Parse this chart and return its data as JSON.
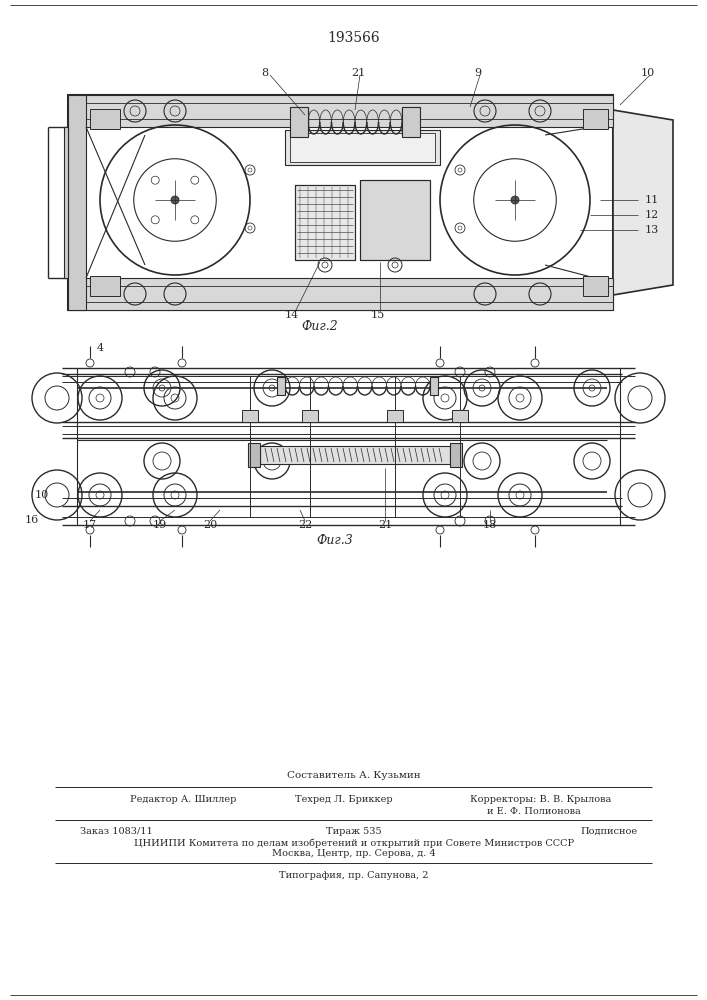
{
  "patent_number": "193566",
  "bg_color": "#ffffff",
  "lc": "#2a2a2a",
  "fig1_caption": "Фиг.2",
  "fig2_caption": "Фиг.3",
  "footer_composer": "Составитель А. Кузьмин",
  "footer_editor": "Редактор А. Шиллер",
  "footer_techred": "Техред Л. Бриккер",
  "footer_corr": "Корректоры: В. В. Крылова",
  "footer_corr2": "и Е. Ф. Полионова",
  "footer_order": "Заказ 1083/11",
  "footer_tirazh": "Тираж 535",
  "footer_podp": "Подписное",
  "footer_cniip": "ЦНИИПИ Комитета по делам изобретений и открытий при Совете Министров СССР",
  "footer_moscow": "Москва, Центр, пр. Серова, д. 4",
  "footer_tip": "Типография, пр. Сапунова, 2"
}
